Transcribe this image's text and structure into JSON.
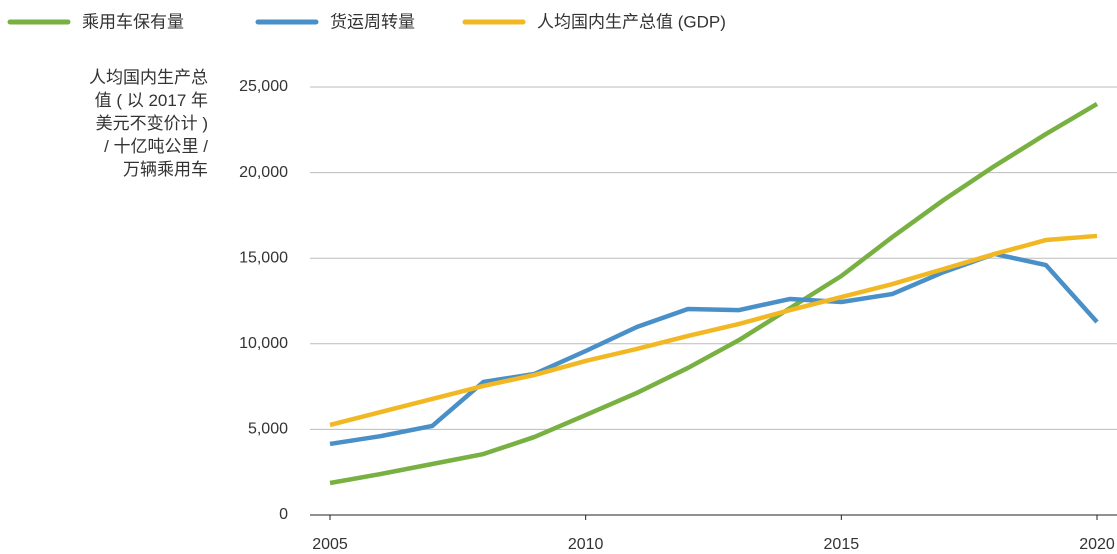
{
  "chart_data": {
    "type": "line",
    "y_label": "人均国内生产总值 ( 以 2017 年美元不变价计 ) / 十亿吨公里 / 万辆乘用车",
    "x": [
      2005,
      2006,
      2007,
      2008,
      2009,
      2010,
      2011,
      2012,
      2013,
      2014,
      2015,
      2016,
      2017,
      2018,
      2019,
      2020
    ],
    "xlim": [
      2005,
      2020
    ],
    "xticks": [
      2005,
      2010,
      2015,
      2020
    ],
    "ylim": [
      0,
      25000
    ],
    "yticks": [
      0,
      {
        "value": 5000,
        "label": "5,000"
      },
      {
        "value": 10000,
        "label": "10,000"
      },
      {
        "value": 15000,
        "label": "15,000"
      },
      {
        "value": 20000,
        "label": "20,000"
      },
      {
        "value": 25000,
        "label": "25,000"
      }
    ],
    "grid": true,
    "legend": "top",
    "series": [
      {
        "name": "乘用车保有量",
        "color": "#78b042",
        "values": [
          1870,
          2400,
          2980,
          3560,
          4560,
          5840,
          7130,
          8590,
          10220,
          12090,
          13960,
          16240,
          18400,
          20390,
          22250,
          24010
        ]
      },
      {
        "name": "货运周转量",
        "color": "#4a90c8",
        "values": [
          4150,
          4610,
          5200,
          7770,
          8240,
          9580,
          10980,
          12030,
          11970,
          12620,
          12440,
          12910,
          14190,
          15250,
          14600,
          11270
        ]
      },
      {
        "name": "人均国内生产总值 (GDP)",
        "color": "#f2b824",
        "values": [
          5260,
          6020,
          6780,
          7540,
          8180,
          9000,
          9700,
          10460,
          11160,
          11970,
          12730,
          13490,
          14370,
          15250,
          16060,
          16300
        ]
      }
    ]
  }
}
